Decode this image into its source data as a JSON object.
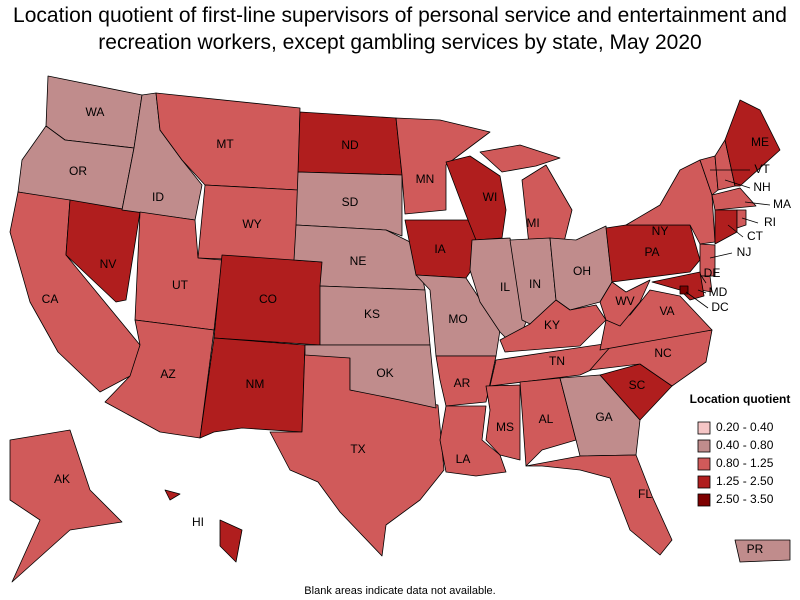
{
  "title": "Location quotient of first-line supervisors of personal service and entertainment and recreation workers, except gambling services by state, May 2020",
  "legend": {
    "title": "Location quotient",
    "items": [
      {
        "label": "0.20 - 0.40",
        "color": "#f5c6c6"
      },
      {
        "label": "0.40 - 0.80",
        "color": "#c08c8c"
      },
      {
        "label": "0.80 - 1.25",
        "color": "#d05a5a"
      },
      {
        "label": "1.25 - 2.50",
        "color": "#b01e1e"
      },
      {
        "label": "2.50 - 3.50",
        "color": "#7e0000"
      }
    ]
  },
  "states": [
    {
      "label": "WA",
      "bin": "0.40 - 0.80"
    },
    {
      "label": "OR",
      "bin": "0.40 - 0.80"
    },
    {
      "label": "CA",
      "bin": "0.80 - 1.25"
    },
    {
      "label": "NV",
      "bin": "1.25 - 2.50"
    },
    {
      "label": "ID",
      "bin": "0.40 - 0.80"
    },
    {
      "label": "MT",
      "bin": "0.80 - 1.25"
    },
    {
      "label": "WY",
      "bin": "0.80 - 1.25"
    },
    {
      "label": "UT",
      "bin": "0.80 - 1.25"
    },
    {
      "label": "AZ",
      "bin": "0.80 - 1.25"
    },
    {
      "label": "CO",
      "bin": "1.25 - 2.50"
    },
    {
      "label": "NM",
      "bin": "1.25 - 2.50"
    },
    {
      "label": "TX",
      "bin": "0.80 - 1.25"
    },
    {
      "label": "ND",
      "bin": "1.25 - 2.50"
    },
    {
      "label": "SD",
      "bin": "0.40 - 0.80"
    },
    {
      "label": "NE",
      "bin": "0.40 - 0.80"
    },
    {
      "label": "KS",
      "bin": "0.40 - 0.80"
    },
    {
      "label": "OK",
      "bin": "0.40 - 0.80"
    },
    {
      "label": "MN",
      "bin": "0.80 - 1.25"
    },
    {
      "label": "IA",
      "bin": "1.25 - 2.50"
    },
    {
      "label": "MO",
      "bin": "0.40 - 0.80"
    },
    {
      "label": "AR",
      "bin": "0.80 - 1.25"
    },
    {
      "label": "LA",
      "bin": "0.80 - 1.25"
    },
    {
      "label": "WI",
      "bin": "1.25 - 2.50"
    },
    {
      "label": "IL",
      "bin": "0.40 - 0.80"
    },
    {
      "label": "MI",
      "bin": "0.80 - 1.25"
    },
    {
      "label": "IN",
      "bin": "0.40 - 0.80"
    },
    {
      "label": "OH",
      "bin": "0.40 - 0.80"
    },
    {
      "label": "KY",
      "bin": "0.80 - 1.25"
    },
    {
      "label": "TN",
      "bin": "0.80 - 1.25"
    },
    {
      "label": "MS",
      "bin": "0.80 - 1.25"
    },
    {
      "label": "AL",
      "bin": "0.80 - 1.25"
    },
    {
      "label": "GA",
      "bin": "0.40 - 0.80"
    },
    {
      "label": "FL",
      "bin": "0.80 - 1.25"
    },
    {
      "label": "SC",
      "bin": "1.25 - 2.50"
    },
    {
      "label": "NC",
      "bin": "0.80 - 1.25"
    },
    {
      "label": "VA",
      "bin": "0.80 - 1.25"
    },
    {
      "label": "WV",
      "bin": "0.80 - 1.25"
    },
    {
      "label": "PA",
      "bin": "1.25 - 2.50"
    },
    {
      "label": "NY",
      "bin": "0.80 - 1.25"
    },
    {
      "label": "NJ",
      "bin": "0.80 - 1.25"
    },
    {
      "label": "DE",
      "bin": "0.80 - 1.25"
    },
    {
      "label": "MD",
      "bin": "1.25 - 2.50"
    },
    {
      "label": "DC",
      "bin": "2.50 - 3.50"
    },
    {
      "label": "VT",
      "bin": "0.80 - 1.25"
    },
    {
      "label": "NH",
      "bin": "0.80 - 1.25"
    },
    {
      "label": "ME",
      "bin": "1.25 - 2.50"
    },
    {
      "label": "MA",
      "bin": "0.80 - 1.25"
    },
    {
      "label": "CT",
      "bin": "1.25 - 2.50"
    },
    {
      "label": "RI",
      "bin": "0.80 - 1.25"
    },
    {
      "label": "AK",
      "bin": "0.80 - 1.25"
    },
    {
      "label": "HI",
      "bin": "1.25 - 2.50"
    },
    {
      "label": "PR",
      "bin": "0.40 - 0.80"
    }
  ],
  "note": "Blank areas indicate data not available."
}
